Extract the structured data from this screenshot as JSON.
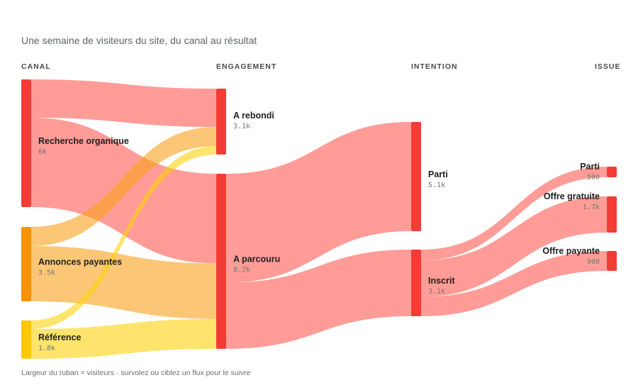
{
  "subtitle": "Une semaine de visiteurs du site, du canal au résultat",
  "footer": "Largeur du ruban = visiteurs · survolez ou ciblez un flux pour le suivre",
  "columns": [
    "CANAL",
    "ENGAGEMENT",
    "INTENTION",
    "ISSUE"
  ],
  "chart_data": {
    "type": "sankey",
    "nodes": [
      {
        "id": "organic",
        "name": "Recherche organique",
        "value_label": "6k",
        "value": 6000,
        "column": 0,
        "color": "#f23c35"
      },
      {
        "id": "paid",
        "name": "Annonces payantes",
        "value_label": "3.5k",
        "value": 3500,
        "column": 0,
        "color": "#f79106"
      },
      {
        "id": "ref",
        "name": "Référence",
        "value_label": "1.8k",
        "value": 1800,
        "column": 0,
        "color": "#fcc707"
      },
      {
        "id": "bounce",
        "name": "A rebondi",
        "value_label": "3.1k",
        "value": 3100,
        "column": 1,
        "color": "#f23c35"
      },
      {
        "id": "browse",
        "name": "A parcouru",
        "value_label": "8.2k",
        "value": 8200,
        "column": 1,
        "color": "#f23c35"
      },
      {
        "id": "left",
        "name": "Parti",
        "value_label": "5.1k",
        "value": 5100,
        "column": 2,
        "color": "#f23c35"
      },
      {
        "id": "signup",
        "name": "Inscrit",
        "value_label": "3.1k",
        "value": 3100,
        "column": 2,
        "color": "#f23c35"
      },
      {
        "id": "left2",
        "name": "Parti",
        "value_label": "500",
        "value": 500,
        "column": 3,
        "color": "#f23c35"
      },
      {
        "id": "free",
        "name": "Offre gratuite",
        "value_label": "1.7k",
        "value": 1700,
        "column": 3,
        "color": "#f23c35"
      },
      {
        "id": "paidoffer",
        "name": "Offre payante",
        "value_label": "900",
        "value": 900,
        "column": 3,
        "color": "#f23c35"
      }
    ],
    "links": [
      {
        "source": "organic",
        "target": "bounce",
        "value": 1800
      },
      {
        "source": "organic",
        "target": "browse",
        "value": 4200
      },
      {
        "source": "paid",
        "target": "bounce",
        "value": 900
      },
      {
        "source": "paid",
        "target": "browse",
        "value": 2600
      },
      {
        "source": "ref",
        "target": "bounce",
        "value": 400
      },
      {
        "source": "ref",
        "target": "browse",
        "value": 1400
      },
      {
        "source": "browse",
        "target": "left",
        "value": 5100
      },
      {
        "source": "browse",
        "target": "signup",
        "value": 3100
      },
      {
        "source": "signup",
        "target": "left2",
        "value": 500
      },
      {
        "source": "signup",
        "target": "free",
        "value": 1700
      },
      {
        "source": "signup",
        "target": "paidoffer",
        "value": 900
      }
    ]
  }
}
